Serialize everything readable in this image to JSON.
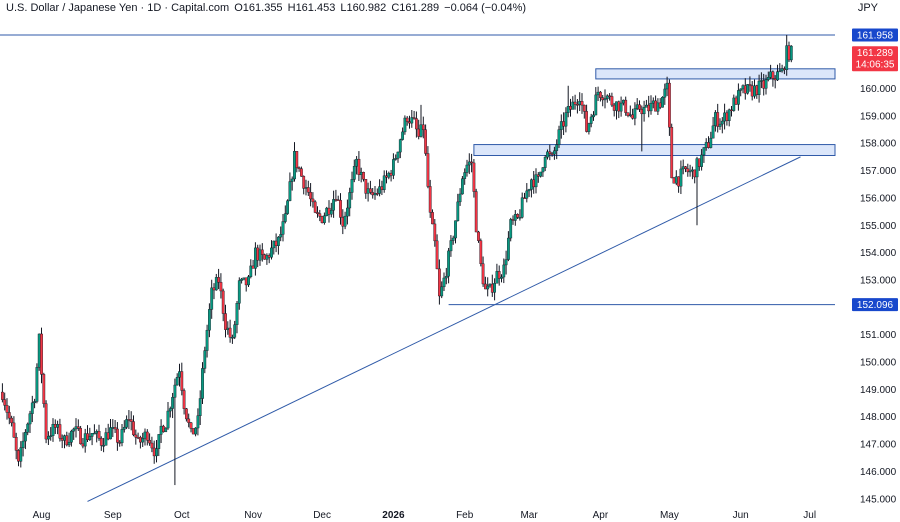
{
  "header": {
    "instrument": "U.S. Dollar / Japanese Yen · 1D · Capital.com",
    "open": "O161.355",
    "high": "H161.453",
    "low": "L160.982",
    "close": "C161.289",
    "change": "−0.064 (−0.04%)",
    "currency": "JPY"
  },
  "colors": {
    "up": "#089981",
    "down": "#f23645",
    "line": "#2f5aa8",
    "zone_fill": "#dbe6fa",
    "badge_blue": "#1848cc",
    "badge_red": "#f23645",
    "axis_text": "#131722"
  },
  "chart_data": {
    "type": "candlestick",
    "y_axis": {
      "min": 144.9,
      "max": 162.5,
      "ticks": [
        "145.000",
        "146.000",
        "147.000",
        "148.000",
        "149.000",
        "150.000",
        "151.000",
        "152.000",
        "153.000",
        "154.000",
        "155.000",
        "156.000",
        "157.000",
        "158.000",
        "159.000",
        "160.000"
      ]
    },
    "x_axis": {
      "labels": [
        {
          "label": "Aug",
          "day": 0
        },
        {
          "label": "Sep",
          "day": 31
        },
        {
          "label": "Oct",
          "day": 61
        },
        {
          "label": "Nov",
          "day": 92
        },
        {
          "label": "Dec",
          "day": 122
        },
        {
          "label": "2026",
          "day": 153,
          "bold": true
        },
        {
          "label": "Feb",
          "day": 184
        },
        {
          "label": "Mar",
          "day": 212
        },
        {
          "label": "Apr",
          "day": 243
        },
        {
          "label": "May",
          "day": 273
        },
        {
          "label": "Jun",
          "day": 304
        },
        {
          "label": "Jul",
          "day": 334
        }
      ]
    },
    "price_badges": [
      {
        "name": "high-line-badge",
        "value": "161.958",
        "price": 161.958,
        "color": "badge_blue"
      },
      {
        "name": "last-price-badge",
        "value": "161.289",
        "countdown": "14:06:35",
        "price": 161.289,
        "color": "badge_red"
      },
      {
        "name": "low-line-badge",
        "value": "152.096",
        "price": 152.096,
        "color": "badge_blue"
      }
    ],
    "lines": [
      {
        "name": "trendline",
        "from": {
          "day": 20,
          "price": 144.9
        },
        "to": {
          "day": 330,
          "price": 157.5
        }
      },
      {
        "name": "high-horizontal-line",
        "from": {
          "day": -20,
          "price": 161.958
        },
        "to": {
          "day": 345,
          "price": 161.958
        }
      },
      {
        "name": "low-horizontal-line",
        "from": {
          "day": 177,
          "price": 152.096
        },
        "to": {
          "day": 345,
          "price": 152.096
        }
      }
    ],
    "zones": [
      {
        "name": "resistance-zone",
        "from_day": 241,
        "to_day": 345,
        "top": 160.72,
        "bottom": 160.35
      },
      {
        "name": "support-zone",
        "from_day": 188,
        "to_day": 345,
        "top": 157.95,
        "bottom": 157.55
      }
    ],
    "path": [
      [
        -17,
        148.9
      ],
      [
        -13,
        147.6
      ],
      [
        -10,
        146.2
      ],
      [
        -7,
        147.5
      ],
      [
        -3,
        148.8
      ],
      [
        -1,
        150.8
      ],
      [
        2,
        147.3
      ],
      [
        6,
        147.6
      ],
      [
        10,
        147.1
      ],
      [
        14,
        147.5
      ],
      [
        18,
        147.2
      ],
      [
        22,
        147.4
      ],
      [
        26,
        147.1
      ],
      [
        30,
        147.5
      ],
      [
        34,
        147.1
      ],
      [
        38,
        148.0
      ],
      [
        42,
        147.0
      ],
      [
        46,
        147.4
      ],
      [
        50,
        146.6
      ],
      [
        52,
        147.6
      ],
      [
        54,
        147.8
      ],
      [
        58,
        149.2
      ],
      [
        60,
        149.8
      ],
      [
        62,
        148.5
      ],
      [
        65,
        147.3
      ],
      [
        68,
        147.8
      ],
      [
        71,
        150.5
      ],
      [
        74,
        152.5
      ],
      [
        77,
        153.0
      ],
      [
        80,
        151.4
      ],
      [
        83,
        150.7
      ],
      [
        86,
        152.8
      ],
      [
        90,
        152.9
      ],
      [
        93,
        154.0
      ],
      [
        97,
        153.7
      ],
      [
        100,
        154.1
      ],
      [
        103,
        154.4
      ],
      [
        106,
        155.2
      ],
      [
        110,
        157.5
      ],
      [
        113,
        156.8
      ],
      [
        116,
        156.2
      ],
      [
        119,
        155.3
      ],
      [
        122,
        155.3
      ],
      [
        126,
        155.8
      ],
      [
        128,
        156.2
      ],
      [
        131,
        155.1
      ],
      [
        134,
        156.1
      ],
      [
        137,
        157.3
      ],
      [
        140,
        156.5
      ],
      [
        143,
        156.0
      ],
      [
        147,
        156.3
      ],
      [
        150,
        156.7
      ],
      [
        153,
        157.2
      ],
      [
        156,
        158.2
      ],
      [
        159,
        159.0
      ],
      [
        162,
        158.7
      ],
      [
        164,
        158.2
      ],
      [
        166,
        158.6
      ],
      [
        169,
        155.3
      ],
      [
        171,
        154.3
      ],
      [
        173,
        152.3
      ],
      [
        175,
        153.0
      ],
      [
        178,
        154.2
      ],
      [
        181,
        155.7
      ],
      [
        183,
        156.8
      ],
      [
        185,
        157.2
      ],
      [
        187,
        157.3
      ],
      [
        189,
        155.0
      ],
      [
        191,
        153.5
      ],
      [
        193,
        152.6
      ],
      [
        195,
        152.6
      ],
      [
        198,
        153.2
      ],
      [
        201,
        153.4
      ],
      [
        204,
        155.0
      ],
      [
        207,
        155.2
      ],
      [
        210,
        156.0
      ],
      [
        213,
        156.7
      ],
      [
        216,
        156.6
      ],
      [
        219,
        157.7
      ],
      [
        222,
        157.4
      ],
      [
        225,
        158.3
      ],
      [
        228,
        159.0
      ],
      [
        231,
        159.4
      ],
      [
        234,
        159.8
      ],
      [
        237,
        158.5
      ],
      [
        240,
        159.3
      ],
      [
        242,
        159.9
      ],
      [
        245,
        159.8
      ],
      [
        248,
        159.5
      ],
      [
        251,
        159.4
      ],
      [
        254,
        159.3
      ],
      [
        257,
        158.9
      ],
      [
        260,
        159.3
      ],
      [
        263,
        159.2
      ],
      [
        266,
        159.4
      ],
      [
        269,
        159.5
      ],
      [
        272,
        160.0
      ],
      [
        274,
        156.8
      ],
      [
        277,
        156.7
      ],
      [
        280,
        157.0
      ],
      [
        283,
        156.9
      ],
      [
        286,
        157.3
      ],
      [
        290,
        158.0
      ],
      [
        293,
        158.9
      ],
      [
        296,
        158.8
      ],
      [
        299,
        159.2
      ],
      [
        302,
        159.6
      ],
      [
        305,
        159.9
      ],
      [
        308,
        159.9
      ],
      [
        311,
        160.0
      ],
      [
        314,
        160.1
      ],
      [
        317,
        160.4
      ],
      [
        320,
        160.5
      ],
      [
        322,
        160.6
      ],
      [
        324,
        161.3
      ],
      [
        326,
        161.3
      ]
    ],
    "spikes": [
      {
        "day": -1,
        "high": 150.9
      },
      {
        "day": 58,
        "low": 145.5
      },
      {
        "day": 165,
        "high": 159.4
      },
      {
        "day": 173,
        "low": 152.1
      },
      {
        "day": 229,
        "high": 160.1
      },
      {
        "day": 261,
        "low": 157.7
      },
      {
        "day": 285,
        "low": 155.0
      },
      {
        "day": 324,
        "high": 161.958
      }
    ]
  }
}
